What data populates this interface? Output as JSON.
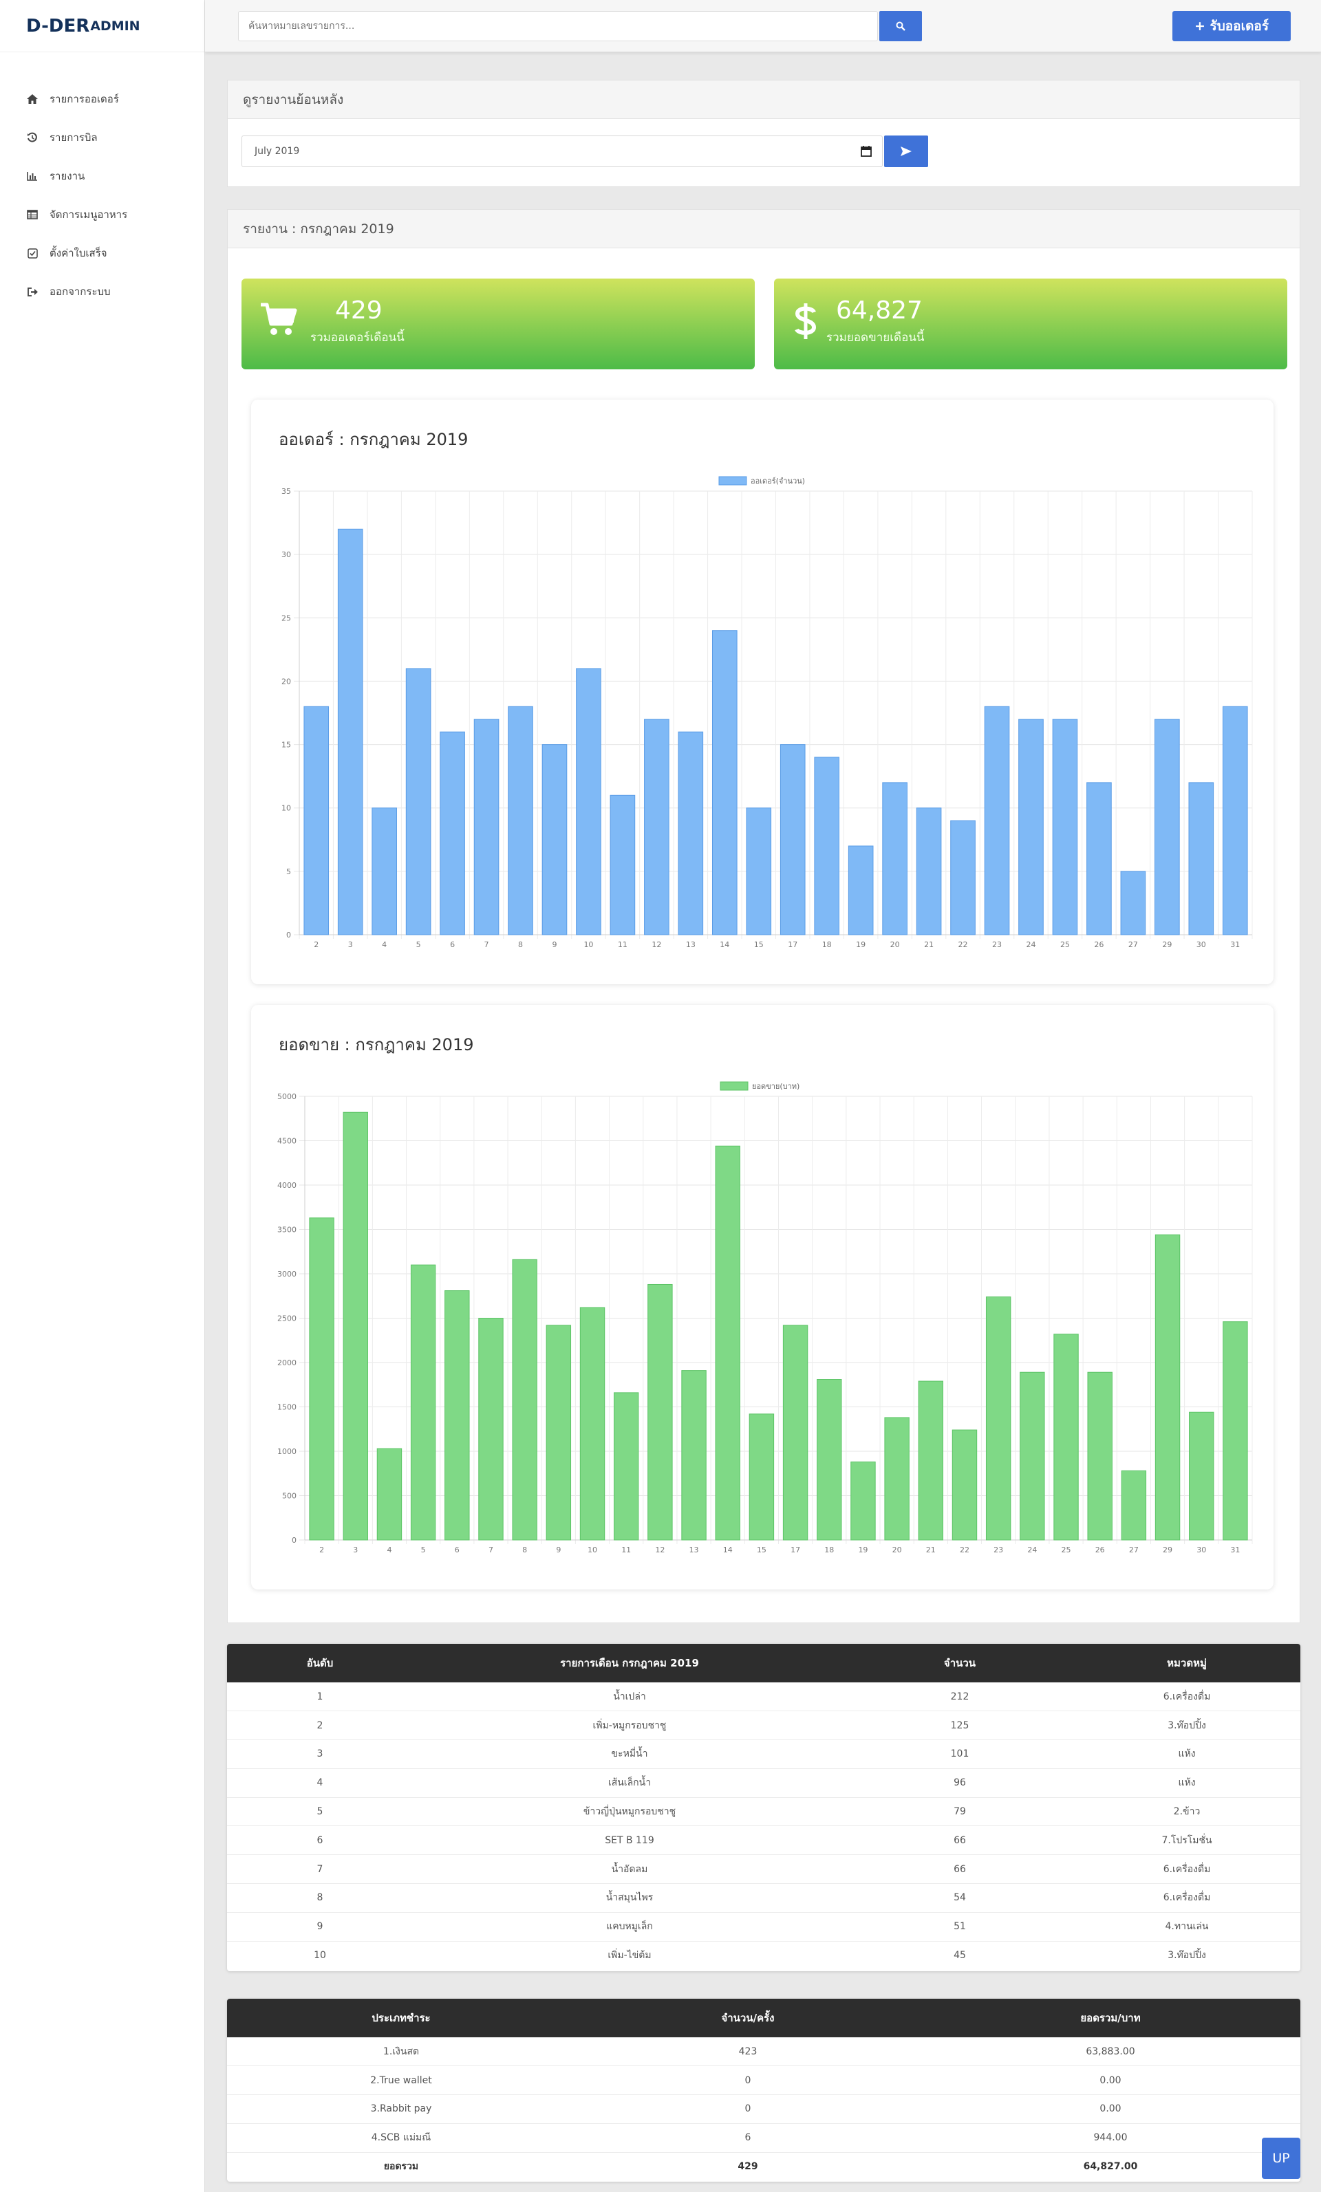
{
  "brand": {
    "main": "D-DER",
    "sub": "ADMIN"
  },
  "nav": [
    {
      "label": "รายการออเดอร์",
      "icon": "home-icon"
    },
    {
      "label": "รายการบิล",
      "icon": "history-icon"
    },
    {
      "label": "รายงาน",
      "icon": "bar-chart-icon"
    },
    {
      "label": "จัดการเมนูอาหาร",
      "icon": "table-icon"
    },
    {
      "label": "ตั้งค่าใบเสร็จ",
      "icon": "checkbox-icon"
    },
    {
      "label": "ออกจากระบบ",
      "icon": "sign-out-icon"
    }
  ],
  "topbar": {
    "search_placeholder": "ค้นหาหมายเลขรายการ...",
    "new_order_label": "+ รับออเดอร์"
  },
  "history": {
    "title": "ดูรายงานย้อนหลัง",
    "month_value": "July 2019"
  },
  "report": {
    "title": "รายงาน : กรกฎาคม 2019",
    "orders_total": "429",
    "orders_label": "รวมออเดอร์เดือนนี้",
    "sales_total": "64,827",
    "sales_label": "รวมยอดขายเดือนนี้"
  },
  "chart_data": [
    {
      "type": "bar",
      "title": "ออเดอร์ : กรกฎาคม 2019",
      "categories": [
        "2",
        "3",
        "4",
        "5",
        "6",
        "7",
        "8",
        "9",
        "10",
        "11",
        "12",
        "13",
        "14",
        "15",
        "17",
        "18",
        "19",
        "20",
        "21",
        "22",
        "23",
        "24",
        "25",
        "26",
        "27",
        "29",
        "30",
        "31"
      ],
      "series": [
        {
          "name": "ออเดอร์(จำนวน)",
          "values": [
            18,
            32,
            10,
            21,
            16,
            17,
            18,
            15,
            21,
            11,
            17,
            16,
            24,
            10,
            15,
            14,
            7,
            12,
            10,
            9,
            18,
            17,
            17,
            12,
            5,
            17,
            12,
            18
          ],
          "color": "#7fb9f6"
        }
      ],
      "ylim": [
        0,
        35
      ],
      "yticks": [
        "0",
        "5",
        "10",
        "15",
        "20",
        "25",
        "30",
        "35"
      ],
      "grid": true,
      "legend": "top"
    },
    {
      "type": "bar",
      "title": "ยอดขาย : กรกฎาคม 2019",
      "categories": [
        "2",
        "3",
        "4",
        "5",
        "6",
        "7",
        "8",
        "9",
        "10",
        "11",
        "12",
        "13",
        "14",
        "15",
        "17",
        "18",
        "19",
        "20",
        "21",
        "22",
        "23",
        "24",
        "25",
        "26",
        "27",
        "29",
        "30",
        "31"
      ],
      "series": [
        {
          "name": "ยอดขาย(บาท)",
          "values": [
            3630,
            4820,
            1030,
            3100,
            2810,
            2500,
            3160,
            2420,
            2620,
            1660,
            2880,
            1910,
            4440,
            1420,
            2420,
            1810,
            880,
            1380,
            1790,
            1240,
            2740,
            1890,
            2320,
            1890,
            780,
            3440,
            1440,
            2460
          ],
          "color": "#7fd986"
        }
      ],
      "ylim": [
        0,
        5000
      ],
      "yticks": [
        "0",
        "500",
        "1000",
        "1500",
        "2000",
        "2500",
        "3000",
        "3500",
        "4000",
        "4500",
        "5000"
      ],
      "grid": true,
      "legend": "top"
    }
  ],
  "top_items": {
    "headers": [
      "อันดับ",
      "รายการเดือน กรกฎาคม 2019",
      "จำนวน",
      "หมวดหมู่"
    ],
    "rows": [
      [
        "1",
        "น้ำเปล่า",
        "212",
        "6.เครื่องดื่ม"
      ],
      [
        "2",
        "เพิ่ม-หมูกรอบชาชู",
        "125",
        "3.ท๊อปปิ้ง"
      ],
      [
        "3",
        "ขะหมี่น้ำ",
        "101",
        "แห้ง"
      ],
      [
        "4",
        "เส้นเล็กน้ำ",
        "96",
        "แห้ง"
      ],
      [
        "5",
        "ข้าวญี่ปุ่นหมูกรอบชาชู",
        "79",
        "2.ข้าว"
      ],
      [
        "6",
        "SET B 119",
        "66",
        "7.โปรโมชั่น"
      ],
      [
        "7",
        "น้ำอัดลม",
        "66",
        "6.เครื่องดื่ม"
      ],
      [
        "8",
        "น้ำสมุนไพร",
        "54",
        "6.เครื่องดื่ม"
      ],
      [
        "9",
        "แคบหมูเล็ก",
        "51",
        "4.ทานเล่น"
      ],
      [
        "10",
        "เพิ่ม-ไข่ต้ม",
        "45",
        "3.ท๊อปปิ้ง"
      ]
    ]
  },
  "payments": {
    "headers": [
      "ประเภทชำระ",
      "จำนวน/ครั้ง",
      "ยอดรวม/บาท"
    ],
    "rows": [
      [
        "1.เงินสด",
        "423",
        "63,883.00"
      ],
      [
        "2.True wallet",
        "0",
        "0.00"
      ],
      [
        "3.Rabbit pay",
        "0",
        "0.00"
      ],
      [
        "4.SCB แม่มณี",
        "6",
        "944.00"
      ]
    ],
    "total": [
      "ยอดรวม",
      "429",
      "64,827.00"
    ]
  },
  "up_label": "UP"
}
